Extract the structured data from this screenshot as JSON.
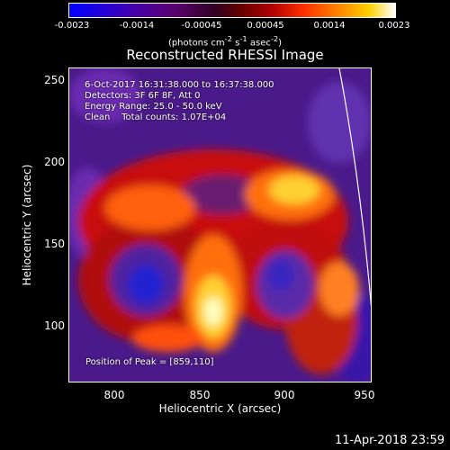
{
  "colorbar": {
    "ticks": [
      "-0.0023",
      "-0.0014",
      "-0.00045",
      "0.00045",
      "0.0014",
      "0.0023"
    ],
    "units_prefix": "(photons cm",
    "units_exp1": "-2",
    "units_mid1": " s",
    "units_exp2": "-1",
    "units_mid2": " asec",
    "units_exp3": "-2",
    "units_suffix": ")"
  },
  "title": "Reconstructed RHESSI Image",
  "info": {
    "time": "6-Oct-2017 16:31:38.000 to 16:37:38.000",
    "detectors": "Detectors: 3F 6F 8F, Att 0",
    "energy": "Energy Range: 25.0 - 50.0 keV",
    "clean": "Clean    Total counts: 1.07E+04"
  },
  "peak": "Position of Peak = [859,110]",
  "axes": {
    "x_label": "Heliocentric X (arcsec)",
    "y_label": "Heliocentric Y (arcsec)",
    "x_ticks": [
      "800",
      "850",
      "900",
      "950"
    ],
    "y_ticks": [
      "250",
      "200",
      "150",
      "100"
    ]
  },
  "timestamp": "11-Apr-2018 23:59",
  "colors": {
    "background": "#000000",
    "text": "#ffffff",
    "limb": "#ffffff"
  }
}
